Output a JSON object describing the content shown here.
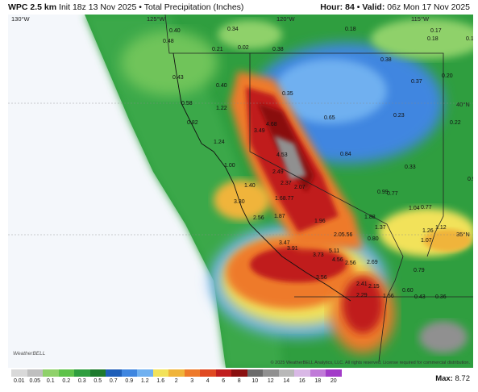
{
  "header": {
    "model": "WPC 2.5 km",
    "init": "Init 18z 13 Nov 2025",
    "separator": "•",
    "product": "Total Precipitation (Inches)",
    "hour_label": "Hour:",
    "hour_value": "84",
    "valid_label": "Valid:",
    "valid_value": "06z Mon 17 Nov 2025"
  },
  "axis_labels": {
    "lon_130": "130°W",
    "lon_125": "125°W",
    "lon_120": "120°W",
    "lon_115": "115°W",
    "lat_40": "40°N",
    "lat_35": "35°N"
  },
  "map_values": [
    "0.40",
    "0.48",
    "0.34",
    "0.18",
    "0.17",
    "0.18",
    "0.14",
    "0.21",
    "0.02",
    "0.38",
    "0.38",
    "0.43",
    "0.40",
    "0.58",
    "0.37",
    "0.20",
    "0.35",
    "1.22",
    "0.65",
    "0.23",
    "0.22",
    "0.82",
    "4.68",
    "3.49",
    "1.24",
    "4.53",
    "0.84",
    "0.33",
    "1.00",
    "2.49",
    "2.37",
    "2.07",
    "0.99",
    "1.40",
    "1.68.77",
    "0.99",
    "0.77",
    "1.04",
    "0.77",
    "3.30",
    "2.56",
    "1.87",
    "1.96",
    "1.88",
    "1.12",
    "1.37",
    "1.26",
    "2.05.56",
    "0.80",
    "1.07",
    "3.47",
    "3.91",
    "3.73",
    "5.11",
    "4.56",
    "2.56",
    "2.69",
    "0.79",
    "3.56",
    "2.41",
    "2.15",
    "0.60",
    "2.29",
    "1.56",
    "0.43",
    "0.36"
  ],
  "colorbar": {
    "ticks": [
      "0.01",
      "0.05",
      "0.1",
      "0.2",
      "0.3",
      "0.5",
      "0.7",
      "0.9",
      "1.2",
      "1.6",
      "2",
      "3",
      "4",
      "6",
      "8",
      "10",
      "12",
      "14",
      "16",
      "18",
      "20"
    ],
    "colors": [
      "#d9d9d9",
      "#bfbfbf",
      "#8fd16a",
      "#5ec24a",
      "#2f9e3f",
      "#1d7a2d",
      "#1f5fb8",
      "#3f86e0",
      "#6fb0f0",
      "#f2e25a",
      "#f0b43a",
      "#ee7a2a",
      "#e04a22",
      "#c01e1e",
      "#8a1010",
      "#6b6b6b",
      "#909090",
      "#b8b8b8",
      "#d9b8e6",
      "#c07ad8",
      "#a23cc8"
    ]
  },
  "max_label": "Max:",
  "max_value": "8.72",
  "credit": "© 2025 WeatherBELL Analytics, LLC. All rights reserved. License required for commercial distribution.",
  "logo": "WeatherBELL"
}
